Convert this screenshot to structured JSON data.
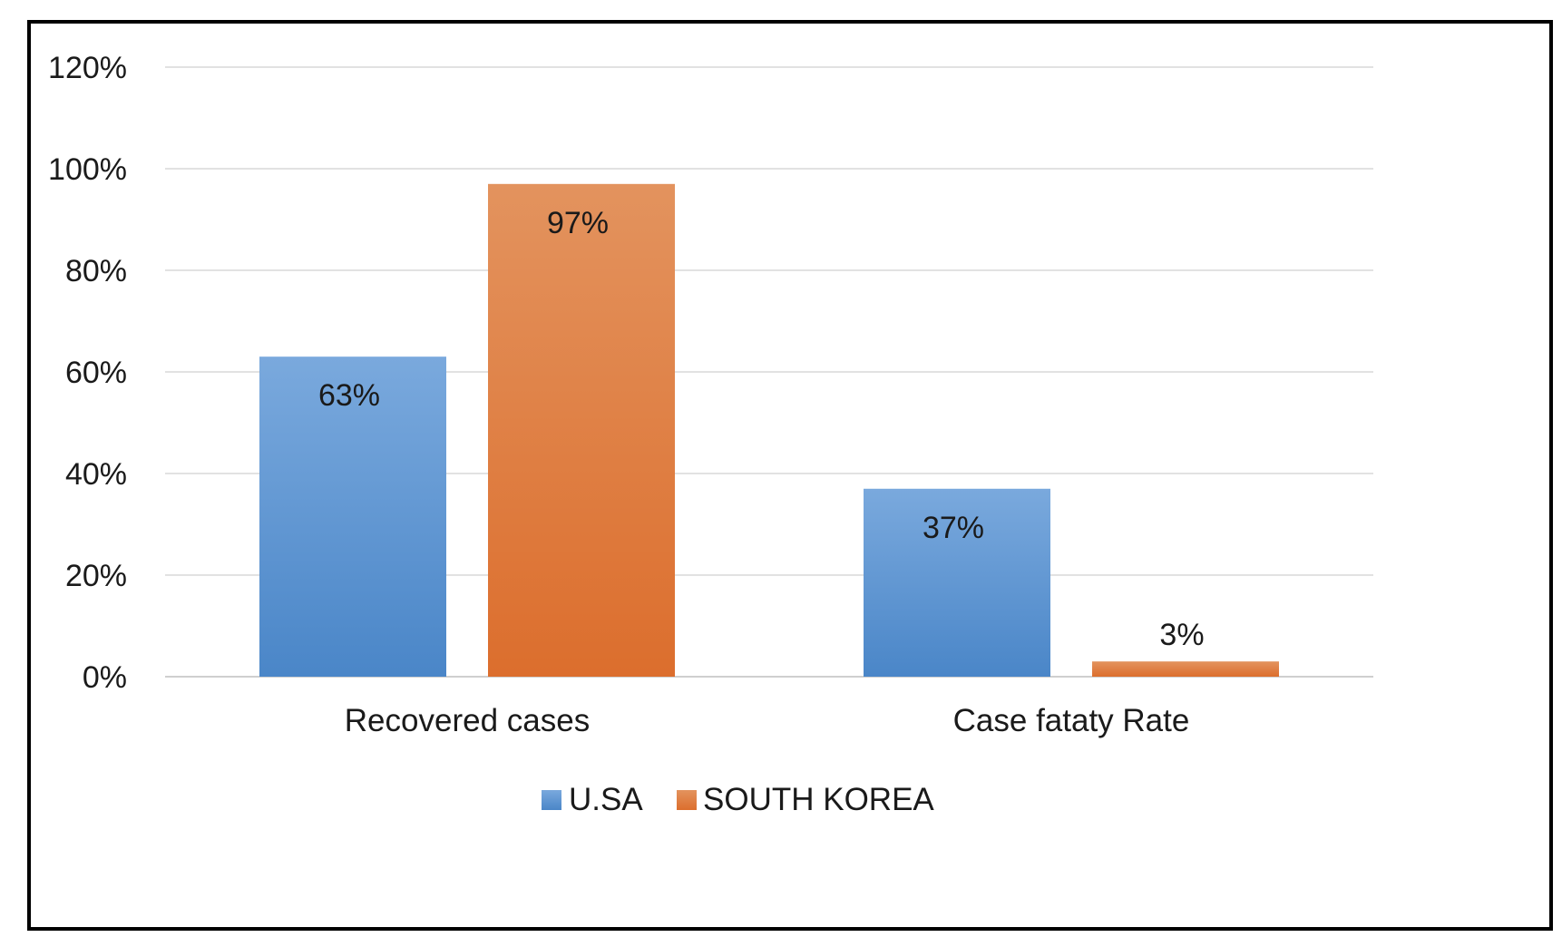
{
  "chart_data": {
    "type": "bar",
    "categories": [
      "Recovered cases",
      "Case fataty Rate"
    ],
    "series": [
      {
        "name": "U.SA",
        "values": [
          63,
          37
        ],
        "labels": [
          "63%",
          "37%"
        ],
        "color": "#5b9bd5"
      },
      {
        "name": "SOUTH KOREA",
        "values": [
          97,
          3
        ],
        "labels": [
          "97%",
          "3%"
        ],
        "color": "#ed7d31"
      }
    ],
    "y_ticks": [
      "0%",
      "20%",
      "40%",
      "60%",
      "80%",
      "100%",
      "120%"
    ],
    "ylim": [
      0,
      120
    ],
    "grid": true,
    "legend_position": "bottom",
    "title": "",
    "xlabel": "",
    "ylabel": ""
  }
}
